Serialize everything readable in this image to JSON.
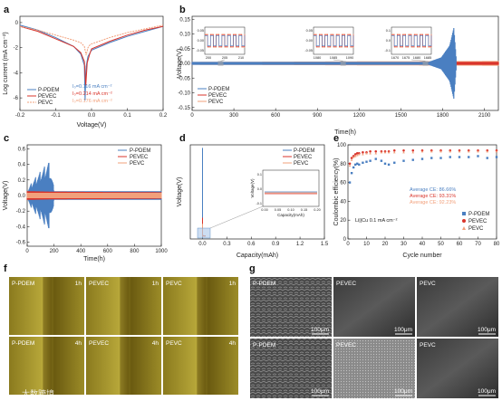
{
  "panel_labels": {
    "a": "a",
    "b": "b",
    "c": "c",
    "d": "d",
    "e": "e",
    "f": "f",
    "g": "g"
  },
  "series_names": [
    "P-PDEM",
    "PEVEC",
    "PEVC"
  ],
  "colors": {
    "P-PDEM": "#4a7fc1",
    "PEVEC": "#d9342b",
    "PEVC": "#f2a07b"
  },
  "chart_data": [
    {
      "panel": "a",
      "type": "line",
      "xlabel": "Voltage(V)",
      "ylabel": "Log current (mA cm⁻²)",
      "xlim": [
        -0.2,
        0.2
      ],
      "x_ticks": [
        "-0.2",
        "-0.1",
        "0.0",
        "0.1",
        "0.2"
      ],
      "y_ticks": [
        "-6",
        "-4",
        "-2",
        "0"
      ],
      "ylim": [
        -7,
        0.5
      ],
      "annotations": [
        "I₀=0.116 mA cm⁻²",
        "I₀=0.214 mA cm⁻²",
        "I₀=0.176 mA cm⁻²"
      ],
      "series": [
        {
          "name": "P-PDEM",
          "x": [
            -0.2,
            -0.15,
            -0.1,
            -0.05,
            -0.03,
            -0.02,
            -0.018,
            -0.015,
            -0.01,
            0,
            0.05,
            0.1,
            0.15,
            0.2
          ],
          "y": [
            -0.2,
            -0.6,
            -1.2,
            -1.9,
            -2.5,
            -3.4,
            -6.2,
            -3.5,
            -2.7,
            -2.2,
            -1.6,
            -1.1,
            -0.7,
            -0.3
          ]
        },
        {
          "name": "PEVEC",
          "x": [
            -0.2,
            -0.15,
            -0.1,
            -0.05,
            -0.03,
            -0.02,
            -0.016,
            -0.012,
            -0.005,
            0,
            0.05,
            0.1,
            0.15,
            0.2
          ],
          "y": [
            -0.3,
            -0.7,
            -1.3,
            -1.9,
            -2.4,
            -3.1,
            -5.0,
            -3.2,
            -2.5,
            -2.1,
            -1.5,
            -1.0,
            -0.6,
            -0.3
          ]
        },
        {
          "name": "PEVC",
          "x": [
            -0.2,
            -0.15,
            -0.1,
            -0.05,
            -0.03,
            -0.02,
            -0.015,
            -0.01,
            -0.005,
            0,
            0.05,
            0.1,
            0.15,
            0.2
          ],
          "y": [
            -0.3,
            -0.6,
            -1.0,
            -1.4,
            -1.6,
            -1.9,
            -2.6,
            -2.0,
            -1.8,
            -1.7,
            -1.2,
            -0.8,
            -0.5,
            -0.2
          ]
        }
      ]
    },
    {
      "panel": "b",
      "type": "line",
      "xlabel": "Time(h)",
      "ylabel": "Voltage(V)",
      "xlim": [
        0,
        2200
      ],
      "ylim": [
        -0.16,
        0.16
      ],
      "x_ticks": [
        "0",
        "300",
        "600",
        "900",
        "1200",
        "1500",
        "1800",
        "2100"
      ],
      "y_ticks": [
        "-0.15",
        "-0.10",
        "-0.05",
        "0.00",
        "0.05",
        "0.10",
        "0.15"
      ],
      "series": [
        {
          "name": "P-PDEM",
          "x": [
            0,
            1700,
            1790,
            1850,
            1880,
            1900
          ],
          "amplitude": [
            0.005,
            0.005,
            0.02,
            0.06,
            0.12,
            0.0
          ]
        },
        {
          "name": "PEVEC",
          "x": [
            0,
            2200
          ],
          "amplitude": [
            0.004,
            0.005
          ]
        },
        {
          "name": "PEVC",
          "x": [
            0,
            2200
          ],
          "amplitude": [
            0.005,
            0.008
          ]
        }
      ],
      "insets": [
        {
          "x_ticks": [
            "200",
            "205",
            "210"
          ],
          "y_ticks": [
            "0.05",
            "0.00",
            "-0.05"
          ]
        },
        {
          "x_ticks": [
            "1080",
            "1085",
            "1090"
          ],
          "y_ticks": [
            "0.05",
            "0.00",
            "-0.05"
          ]
        },
        {
          "x_ticks": [
            "1670",
            "1675",
            "1680",
            "1685"
          ],
          "y_ticks": [
            "0.1",
            "0.0",
            "-0.1"
          ]
        }
      ]
    },
    {
      "panel": "c",
      "type": "line",
      "xlabel": "Time(h)",
      "ylabel": "Voltage(V)",
      "xlim": [
        0,
        1000
      ],
      "ylim": [
        -0.65,
        0.65
      ],
      "x_ticks": [
        "0",
        "200",
        "400",
        "600",
        "800",
        "1000"
      ],
      "y_ticks": [
        "-0.6",
        "-0.4",
        "-0.2",
        "0.0",
        "0.2",
        "0.4",
        "0.6"
      ],
      "series": [
        {
          "name": "P-PDEM",
          "x": [
            0,
            40,
            100,
            160,
            200,
            1000
          ],
          "amplitude": [
            0.05,
            0.15,
            0.25,
            0.35,
            0.08,
            0.08
          ]
        },
        {
          "name": "PEVEC",
          "x": [
            0,
            200,
            1000
          ],
          "amplitude": [
            0.08,
            0.07,
            0.06
          ]
        },
        {
          "name": "PEVC",
          "x": [
            0,
            200,
            1000
          ],
          "amplitude": [
            0.05,
            0.05,
            0.05
          ]
        }
      ]
    },
    {
      "panel": "d",
      "type": "line",
      "xlabel": "Capacity(mAh)",
      "ylabel": "Voltage(V)",
      "xlim": [
        -0.15,
        1.5
      ],
      "ylim": [
        -0.1,
        3.0
      ],
      "x_ticks": [
        "0.0",
        "0.3",
        "0.6",
        "0.9",
        "1.2",
        "1.5"
      ],
      "series": [
        {
          "name": "P-PDEM",
          "x": [
            0,
            0,
            0.02,
            0.04
          ],
          "y": [
            2.9,
            0.02,
            0.0,
            0.0
          ]
        },
        {
          "name": "PEVEC",
          "x": [
            0,
            0,
            0.04
          ],
          "y": [
            0.6,
            0.0,
            0.0
          ]
        },
        {
          "name": "PEVC",
          "x": [
            0,
            0,
            0.04
          ],
          "y": [
            0.4,
            0.0,
            0.0
          ]
        }
      ],
      "inset": {
        "xlabel": "Capacity(mAh)",
        "ylabel": "Voltage(V)",
        "x_ticks": [
          "0.00",
          "0.05",
          "0.10",
          "0.15",
          "0.20"
        ],
        "y_ticks": [
          "0.1",
          "0.0",
          "-0.1"
        ]
      }
    },
    {
      "panel": "e",
      "type": "scatter",
      "xlabel": "Cycle number",
      "ylabel": "Coulombic efficiency(%)",
      "xlim": [
        0,
        80
      ],
      "ylim": [
        0,
        100
      ],
      "x_ticks": [
        "0",
        "10",
        "20",
        "30",
        "40",
        "50",
        "60",
        "70",
        "80"
      ],
      "y_ticks": [
        "0",
        "20",
        "40",
        "60",
        "80",
        "100"
      ],
      "annotations": [
        "Average CE: 86.66%",
        "Average CE: 93.31%",
        "Average CE: 92.23%",
        "Li||Cu   0.1 mA cm⁻²"
      ],
      "series": [
        {
          "name": "P-PDEM",
          "x": [
            1,
            2,
            3,
            4,
            5,
            6,
            8,
            10,
            12,
            15,
            18,
            20,
            22,
            25,
            30,
            35,
            40,
            45,
            50,
            55,
            60,
            65,
            70,
            75,
            80
          ],
          "y": [
            60,
            70,
            76,
            79,
            80,
            79,
            81,
            82,
            83,
            85,
            83,
            80,
            79,
            81,
            83,
            84,
            85,
            86,
            86,
            87,
            87,
            87,
            88,
            86,
            87
          ]
        },
        {
          "name": "PEVEC",
          "x": [
            1,
            2,
            3,
            4,
            5,
            6,
            8,
            10,
            12,
            15,
            18,
            20,
            22,
            25,
            30,
            35,
            40,
            45,
            50,
            55,
            60,
            65,
            70,
            75,
            80
          ],
          "y": [
            80,
            86,
            88,
            90,
            91,
            91,
            92,
            92,
            93,
            93,
            93,
            93,
            93,
            94,
            94,
            94,
            94,
            94,
            94,
            94,
            94,
            94,
            94,
            94,
            94
          ]
        },
        {
          "name": "PEVC",
          "x": [
            1,
            2,
            3,
            4,
            5,
            6,
            8,
            10,
            12,
            15,
            18,
            20,
            22,
            25,
            30,
            35,
            40,
            45,
            50,
            55,
            60,
            65,
            70,
            75,
            80
          ],
          "y": [
            78,
            84,
            87,
            88,
            89,
            90,
            90,
            91,
            91,
            91,
            92,
            92,
            92,
            92,
            92,
            92,
            93,
            93,
            93,
            93,
            93,
            93,
            93,
            93,
            93
          ]
        }
      ]
    }
  ],
  "image_panels": {
    "f": {
      "labels": [
        "P-PDEM",
        "1h",
        "PEVEC",
        "1h",
        "PEVC",
        "1h",
        "P-PDEM",
        "4h",
        "PEVEC",
        "4h",
        "PEVC",
        "4h"
      ]
    },
    "g": {
      "labels": [
        "P-PDEM",
        "PEVEC",
        "PEVC",
        "P-PDEM",
        "PEVEC",
        "PEVC"
      ],
      "scale": "100μm"
    }
  },
  "watermark": "大数跨境"
}
